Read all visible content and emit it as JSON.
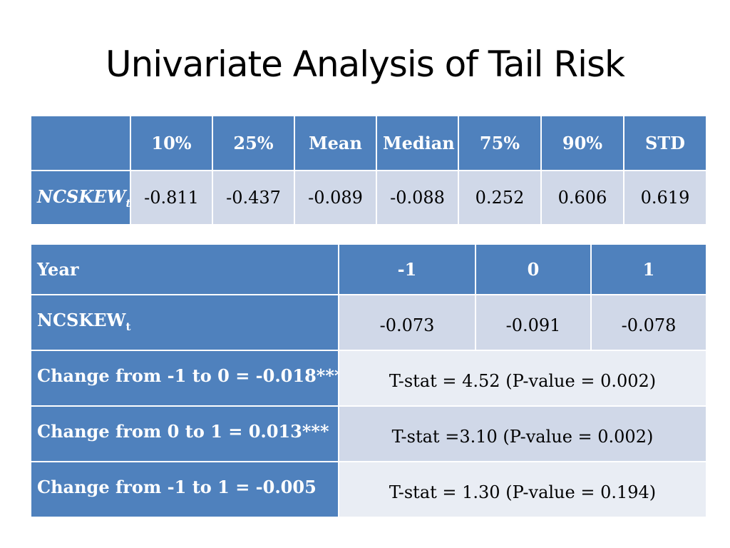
{
  "slide": {
    "title": "Univariate Analysis of Tail Risk"
  },
  "table1": {
    "headers": [
      "",
      "10%",
      "25%",
      "Mean",
      "Median",
      "75%",
      "90%",
      "STD"
    ],
    "row": {
      "label": "NCSKEW",
      "label_sub": "t",
      "values": [
        "-0.811",
        "-0.437",
        "-0.089",
        "-0.088",
        "0.252",
        "0.606",
        "0.619"
      ]
    }
  },
  "table2": {
    "header": {
      "label": "Year",
      "years": [
        "-1",
        "0",
        "1"
      ]
    },
    "ncskew_row": {
      "label": "NCSKEW",
      "label_sub": "t",
      "values": [
        "-0.073",
        "-0.091",
        "-0.078"
      ]
    },
    "changes": [
      {
        "label": "Change from -1 to 0 = -0.018***",
        "stat": "T-stat = 4.52 (P-value = 0.002)"
      },
      {
        "label": "Change from 0 to 1 = 0.013***",
        "stat": "T-stat =3.10 (P-value = 0.002)"
      },
      {
        "label": "Change from -1 to 1 = -0.005",
        "stat": "T-stat = 1.30 (P-value = 0.194)"
      }
    ]
  },
  "colors": {
    "header_blue": "#4f81bd",
    "band_dark": "#d0d8e8",
    "band_light": "#e9edf4"
  }
}
